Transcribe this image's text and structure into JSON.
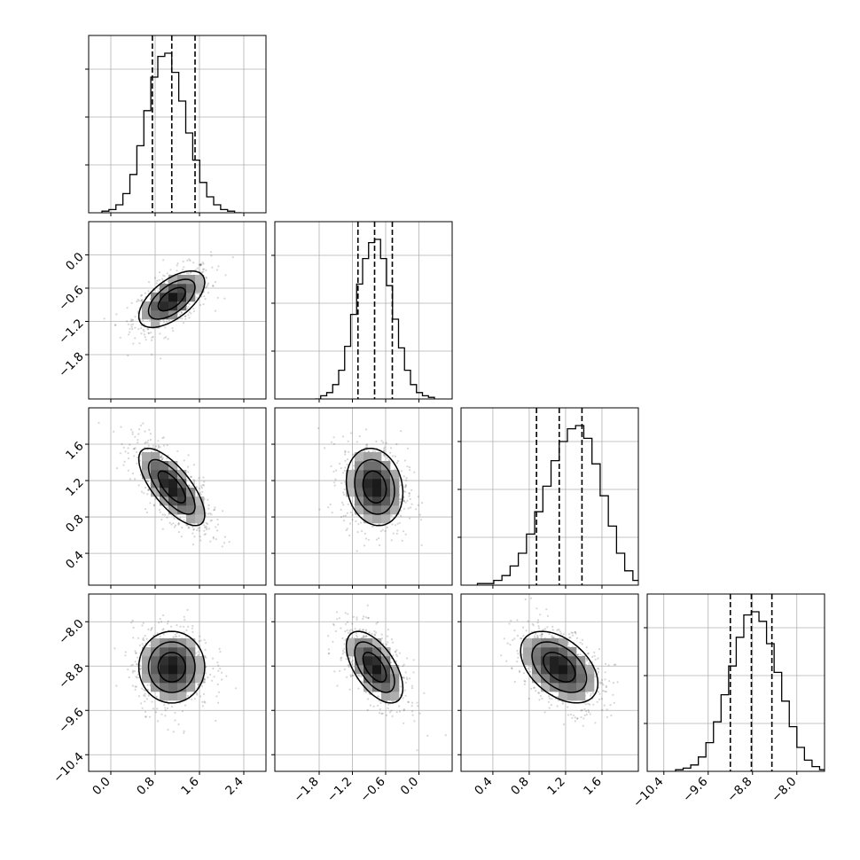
{
  "chart_data": {
    "type": "corner",
    "params": [
      {
        "range": [
          -0.4,
          2.8
        ],
        "ticks": [
          "0.0",
          "0.8",
          "1.6",
          "2.4"
        ],
        "tick_values": [
          0.0,
          0.8,
          1.6,
          2.4
        ],
        "mean": 1.1,
        "sigma": 0.35,
        "quantiles": [
          0.75,
          1.1,
          1.52
        ]
      },
      {
        "range": [
          -2.6,
          0.6
        ],
        "ticks": [
          "−1.8",
          "−1.2",
          "−0.6",
          "0.0"
        ],
        "tick_values": [
          -1.8,
          -1.2,
          -0.6,
          0.0
        ],
        "mean": -0.8,
        "sigma": 0.3,
        "quantiles": [
          -1.1,
          -0.8,
          -0.48
        ]
      },
      {
        "range": [
          0.05,
          2.0
        ],
        "ticks": [
          "0.4",
          "0.8",
          "1.2",
          "1.6"
        ],
        "tick_values": [
          0.4,
          0.8,
          1.2,
          1.6
        ],
        "mean": 1.13,
        "sigma": 0.25,
        "quantiles": [
          0.88,
          1.13,
          1.38
        ]
      },
      {
        "range": [
          -10.7,
          -7.5
        ],
        "ticks": [
          "−10.4",
          "−9.6",
          "−8.8",
          "−8.0"
        ],
        "tick_values": [
          -10.4,
          -9.6,
          -8.8,
          -8.0
        ],
        "mean": -8.82,
        "sigma": 0.38,
        "quantiles": [
          -9.2,
          -8.82,
          -8.45
        ]
      }
    ],
    "correlations": [
      [
        1,
        0.6,
        -0.72,
        0
      ],
      [
        0.6,
        1,
        -0.15,
        -0.58
      ],
      [
        -0.72,
        -0.15,
        1,
        -0.45
      ],
      [
        0,
        -0.58,
        -0.45,
        1
      ]
    ],
    "histograms": [
      [
        0.01,
        0.02,
        0.05,
        0.12,
        0.24,
        0.42,
        0.64,
        0.85,
        0.98,
        1.0,
        0.88,
        0.7,
        0.5,
        0.33,
        0.19,
        0.1,
        0.05,
        0.02,
        0.01,
        0.0
      ],
      [
        0.0,
        0.02,
        0.04,
        0.09,
        0.18,
        0.33,
        0.53,
        0.72,
        0.88,
        0.98,
        1.0,
        0.88,
        0.71,
        0.5,
        0.32,
        0.18,
        0.09,
        0.04,
        0.02,
        0.01
      ],
      [
        0.01,
        0.01,
        0.03,
        0.06,
        0.12,
        0.2,
        0.32,
        0.46,
        0.62,
        0.78,
        0.9,
        0.98,
        1.0,
        0.92,
        0.76,
        0.56,
        0.37,
        0.2,
        0.09,
        0.03
      ],
      [
        0.01,
        0.02,
        0.04,
        0.09,
        0.18,
        0.31,
        0.48,
        0.66,
        0.84,
        0.98,
        1.0,
        0.94,
        0.8,
        0.62,
        0.44,
        0.28,
        0.15,
        0.07,
        0.03,
        0.01
      ]
    ]
  }
}
